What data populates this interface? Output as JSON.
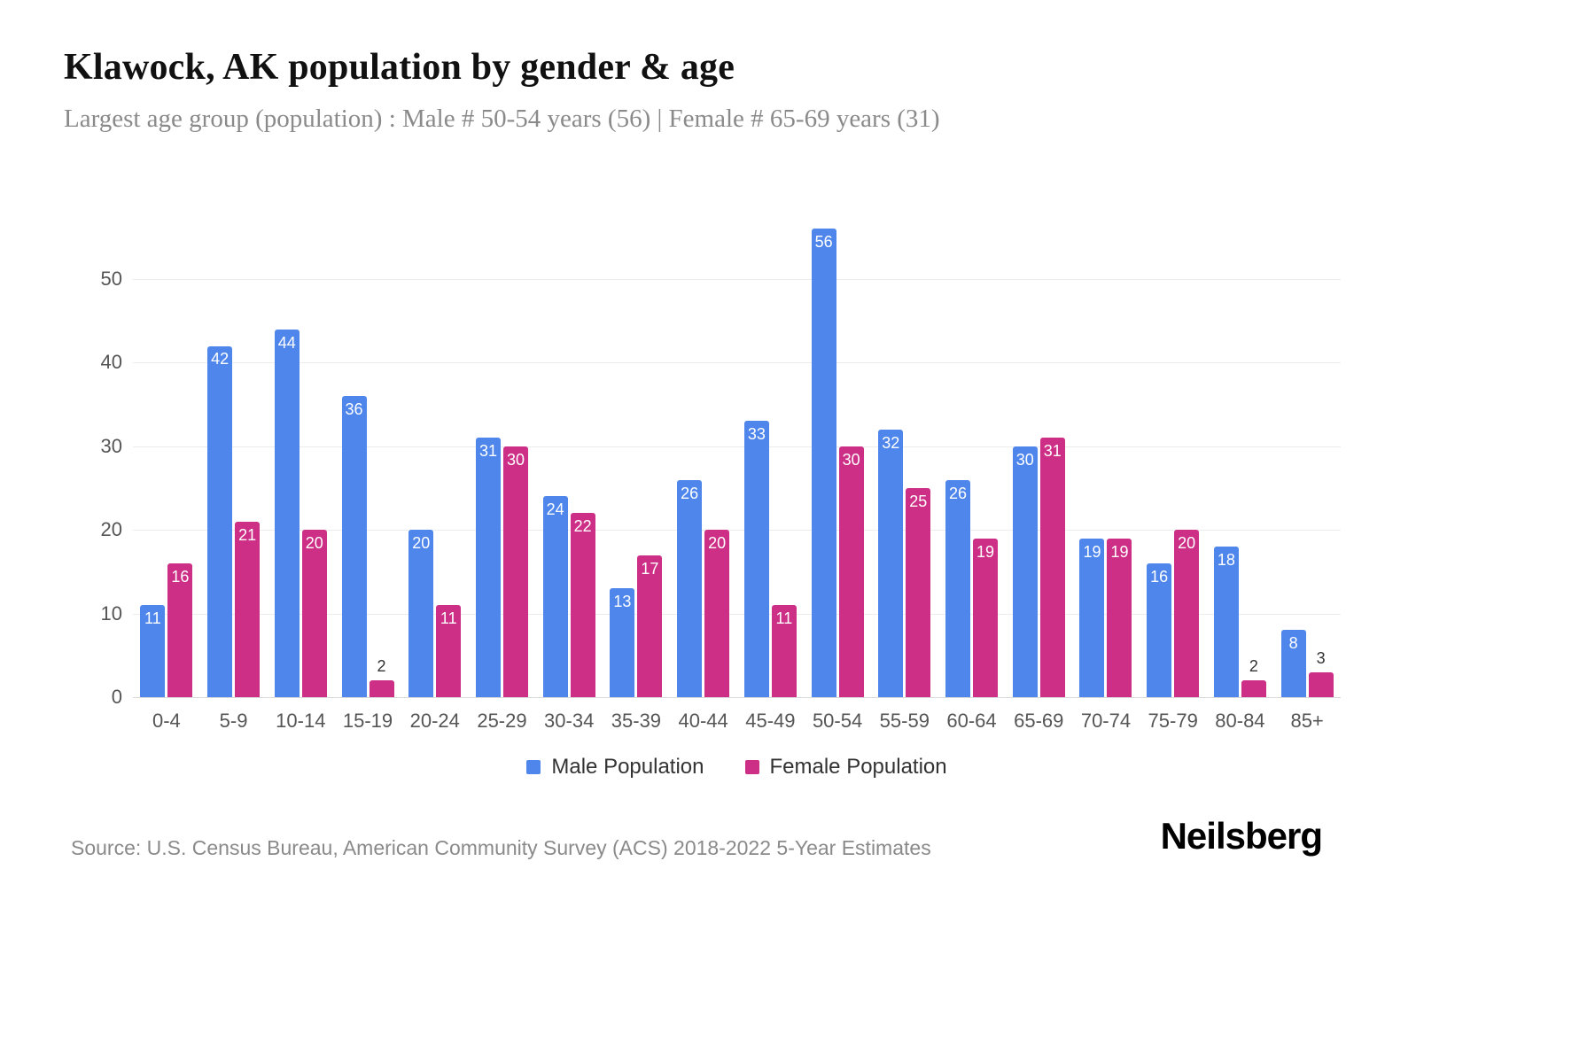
{
  "header": {
    "title": "Klawock, AK population by gender & age",
    "subtitle": "Largest age group (population) : Male # 50-54 years (56) | Female # 65-69 years (31)"
  },
  "chart_data": {
    "type": "bar",
    "title": "Klawock, AK population by gender & age",
    "xlabel": "",
    "ylabel": "",
    "categories": [
      "0-4",
      "5-9",
      "10-14",
      "15-19",
      "20-24",
      "25-29",
      "30-34",
      "35-39",
      "40-44",
      "45-49",
      "50-54",
      "55-59",
      "60-64",
      "65-69",
      "70-74",
      "75-79",
      "80-84",
      "85+"
    ],
    "series": [
      {
        "name": "Male Population",
        "color": "#4e86ec",
        "values": [
          11,
          42,
          44,
          36,
          20,
          31,
          24,
          13,
          26,
          33,
          56,
          32,
          26,
          30,
          19,
          16,
          18,
          8
        ]
      },
      {
        "name": "Female Population",
        "color": "#cd2e86",
        "values": [
          16,
          21,
          20,
          2,
          11,
          30,
          22,
          17,
          20,
          11,
          30,
          25,
          19,
          31,
          19,
          20,
          2,
          3
        ]
      }
    ],
    "ylim": [
      0,
      59
    ],
    "yticks": [
      0,
      10,
      20,
      30,
      40,
      50
    ],
    "grid": true,
    "legend_position": "bottom"
  },
  "footer": {
    "source": "Source: U.S. Census Bureau, American Community Survey (ACS) 2018-2022 5-Year Estimates",
    "brand": "Neilsberg"
  }
}
